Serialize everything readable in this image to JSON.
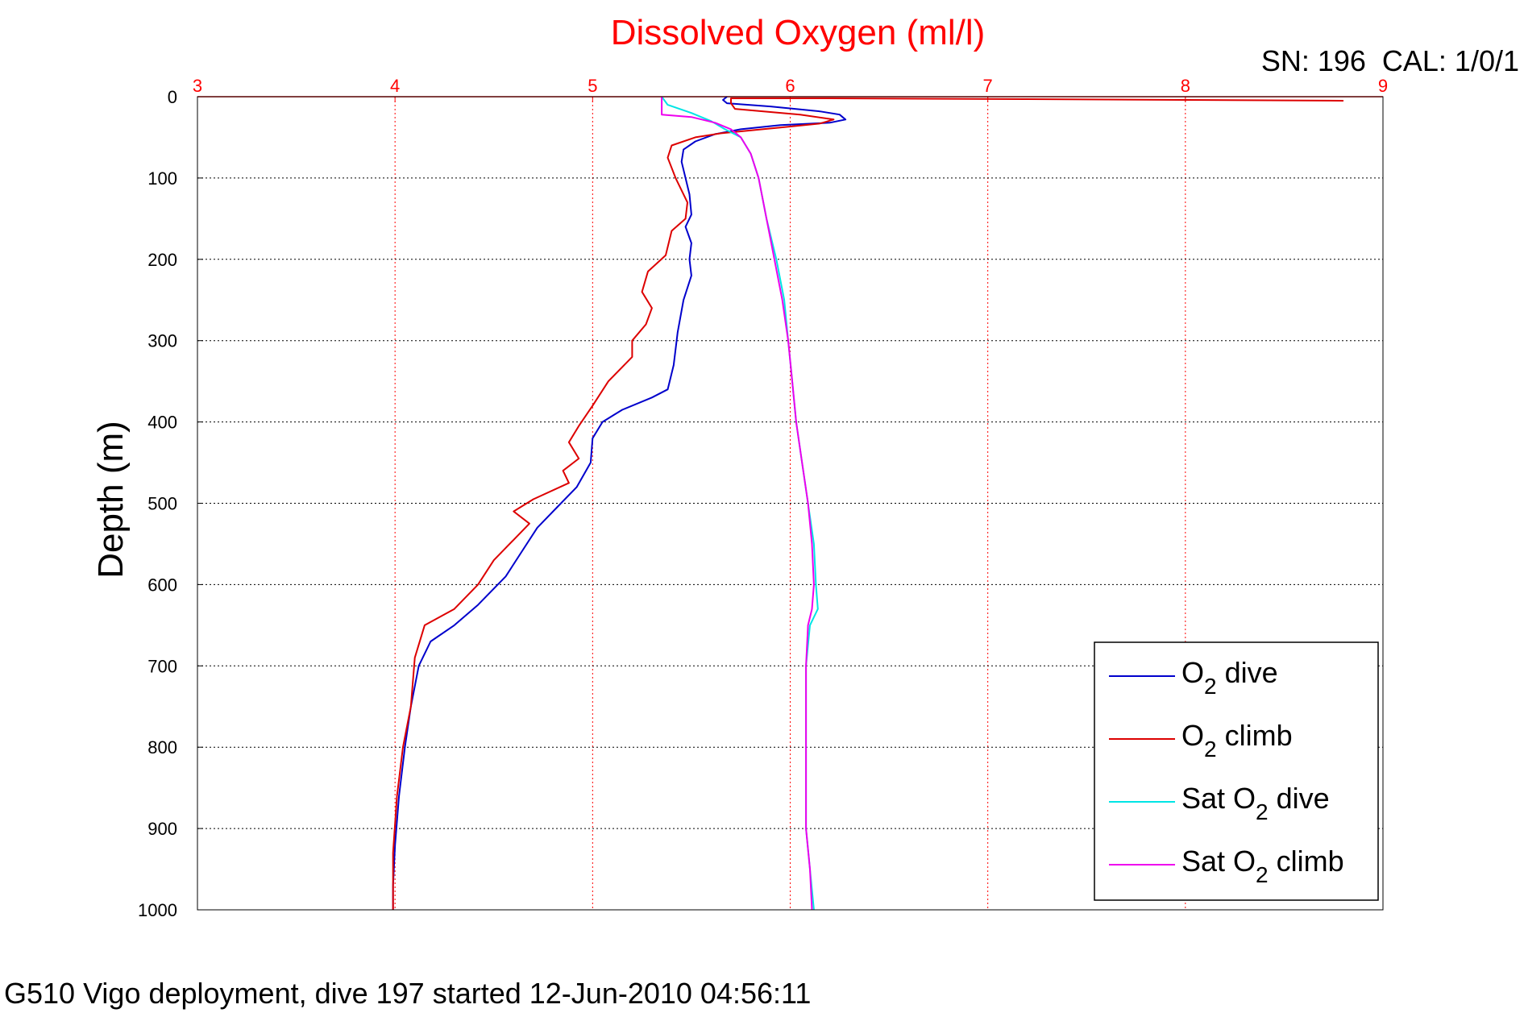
{
  "chart_data": {
    "type": "line",
    "title": "Dissolved Oxygen (ml/l)",
    "serial_label": "SN: 196  CAL: 1/0/1",
    "xlabel": "",
    "ylabel": "Depth (m)",
    "footer": "G510 Vigo deployment, dive 197 started 12-Jun-2010 04:56:11",
    "xlim": [
      3,
      9
    ],
    "ylim": [
      0,
      1000
    ],
    "y_reversed": true,
    "x_axis_position": "top",
    "x_ticks": [
      "3",
      "4",
      "5",
      "6",
      "7",
      "8",
      "9"
    ],
    "y_ticks": [
      "0",
      "100",
      "200",
      "300",
      "400",
      "500",
      "600",
      "700",
      "800",
      "900",
      "1000"
    ],
    "grid": true,
    "legend_position": "bottom-right",
    "colors": {
      "title": "#ff0000",
      "x_axis": "#ff0000",
      "x_grid": "#ff0000",
      "y_grid": "#000000"
    },
    "series": [
      {
        "name": "O2 dive",
        "legend_main": "O",
        "legend_sub": "2",
        "legend_rest": " dive",
        "legend_pre": "",
        "color": "#0000cc",
        "points": [
          [
            5.68,
            0
          ],
          [
            5.66,
            4
          ],
          [
            5.68,
            8
          ],
          [
            5.9,
            12
          ],
          [
            6.15,
            18
          ],
          [
            6.25,
            22
          ],
          [
            6.28,
            28
          ],
          [
            6.2,
            32
          ],
          [
            5.95,
            35
          ],
          [
            5.75,
            40
          ],
          [
            5.62,
            46
          ],
          [
            5.52,
            55
          ],
          [
            5.46,
            65
          ],
          [
            5.45,
            80
          ],
          [
            5.47,
            100
          ],
          [
            5.49,
            120
          ],
          [
            5.5,
            145
          ],
          [
            5.47,
            160
          ],
          [
            5.5,
            180
          ],
          [
            5.49,
            200
          ],
          [
            5.5,
            220
          ],
          [
            5.46,
            250
          ],
          [
            5.43,
            290
          ],
          [
            5.41,
            330
          ],
          [
            5.38,
            360
          ],
          [
            5.3,
            370
          ],
          [
            5.15,
            385
          ],
          [
            5.05,
            400
          ],
          [
            5.0,
            420
          ],
          [
            4.99,
            450
          ],
          [
            4.92,
            480
          ],
          [
            4.82,
            505
          ],
          [
            4.72,
            530
          ],
          [
            4.64,
            560
          ],
          [
            4.56,
            590
          ],
          [
            4.42,
            625
          ],
          [
            4.3,
            650
          ],
          [
            4.18,
            670
          ],
          [
            4.12,
            700
          ],
          [
            4.08,
            750
          ],
          [
            4.05,
            800
          ],
          [
            4.02,
            860
          ],
          [
            4.0,
            920
          ],
          [
            3.99,
            970
          ],
          [
            3.99,
            1000
          ]
        ]
      },
      {
        "name": "O2 climb",
        "legend_main": "O",
        "legend_sub": "2",
        "legend_rest": " climb",
        "legend_pre": "",
        "color": "#dd0000",
        "points": [
          [
            8.8,
            5
          ],
          [
            7.2,
            3
          ],
          [
            6.2,
            2
          ],
          [
            5.7,
            2
          ],
          [
            5.7,
            8
          ],
          [
            5.72,
            15
          ],
          [
            6.05,
            22
          ],
          [
            6.22,
            28
          ],
          [
            6.15,
            33
          ],
          [
            5.95,
            38
          ],
          [
            5.65,
            45
          ],
          [
            5.52,
            50
          ],
          [
            5.4,
            60
          ],
          [
            5.38,
            75
          ],
          [
            5.42,
            100
          ],
          [
            5.48,
            130
          ],
          [
            5.47,
            150
          ],
          [
            5.4,
            165
          ],
          [
            5.37,
            195
          ],
          [
            5.28,
            215
          ],
          [
            5.25,
            240
          ],
          [
            5.3,
            260
          ],
          [
            5.27,
            280
          ],
          [
            5.2,
            300
          ],
          [
            5.2,
            320
          ],
          [
            5.08,
            350
          ],
          [
            5.0,
            380
          ],
          [
            4.93,
            405
          ],
          [
            4.88,
            425
          ],
          [
            4.93,
            445
          ],
          [
            4.85,
            460
          ],
          [
            4.88,
            475
          ],
          [
            4.7,
            495
          ],
          [
            4.6,
            510
          ],
          [
            4.68,
            525
          ],
          [
            4.6,
            545
          ],
          [
            4.5,
            570
          ],
          [
            4.42,
            600
          ],
          [
            4.3,
            630
          ],
          [
            4.15,
            650
          ],
          [
            4.1,
            690
          ],
          [
            4.08,
            750
          ],
          [
            4.04,
            800
          ],
          [
            4.01,
            860
          ],
          [
            3.99,
            930
          ],
          [
            3.99,
            1000
          ]
        ]
      },
      {
        "name": "Sat O2 dive",
        "legend_main": "Sat O",
        "legend_sub": "2",
        "legend_rest": " dive",
        "legend_pre": "",
        "color": "#00e5e5",
        "points": [
          [
            5.35,
            0
          ],
          [
            5.38,
            10
          ],
          [
            5.5,
            20
          ],
          [
            5.6,
            30
          ],
          [
            5.67,
            40
          ],
          [
            5.75,
            50
          ],
          [
            5.8,
            70
          ],
          [
            5.84,
            100
          ],
          [
            5.88,
            150
          ],
          [
            5.93,
            200
          ],
          [
            5.97,
            250
          ],
          [
            5.99,
            300
          ],
          [
            6.01,
            350
          ],
          [
            6.03,
            400
          ],
          [
            6.06,
            450
          ],
          [
            6.09,
            500
          ],
          [
            6.12,
            550
          ],
          [
            6.13,
            600
          ],
          [
            6.14,
            630
          ],
          [
            6.1,
            650
          ],
          [
            6.08,
            700
          ],
          [
            6.08,
            800
          ],
          [
            6.08,
            900
          ],
          [
            6.1,
            950
          ],
          [
            6.12,
            1000
          ]
        ]
      },
      {
        "name": "Sat O2 climb",
        "legend_main": "Sat O",
        "legend_sub": "2",
        "legend_rest": " climb",
        "legend_pre": "",
        "color": "#ee00ee",
        "points": [
          [
            5.35,
            0
          ],
          [
            5.35,
            22
          ],
          [
            5.5,
            25
          ],
          [
            5.62,
            32
          ],
          [
            5.7,
            40
          ],
          [
            5.75,
            50
          ],
          [
            5.8,
            70
          ],
          [
            5.84,
            100
          ],
          [
            5.88,
            150
          ],
          [
            5.92,
            200
          ],
          [
            5.96,
            250
          ],
          [
            5.99,
            300
          ],
          [
            6.01,
            350
          ],
          [
            6.03,
            400
          ],
          [
            6.06,
            450
          ],
          [
            6.09,
            500
          ],
          [
            6.11,
            550
          ],
          [
            6.12,
            600
          ],
          [
            6.11,
            630
          ],
          [
            6.09,
            650
          ],
          [
            6.08,
            700
          ],
          [
            6.08,
            800
          ],
          [
            6.08,
            900
          ],
          [
            6.1,
            950
          ],
          [
            6.11,
            1000
          ]
        ]
      }
    ]
  }
}
